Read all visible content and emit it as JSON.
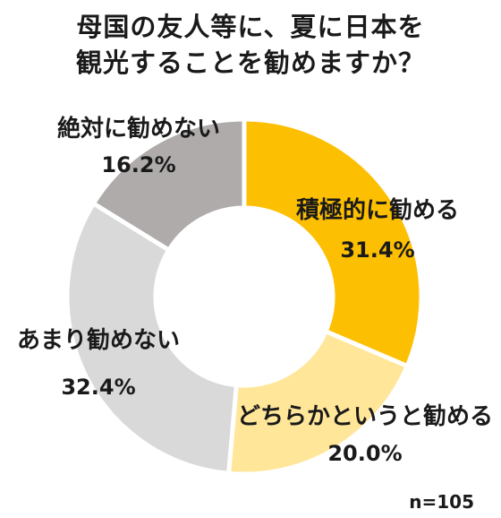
{
  "title_lines": [
    "母国の友人等に、夏に日本を",
    "観光することを勧めますか？"
  ],
  "note": "n=105",
  "chart_data": {
    "type": "pie",
    "variant": "donut",
    "title": "母国の友人等に、夏に日本を観光することを勧めますか？",
    "categories": [
      "積極的に勧める",
      "どちらかというと勧める",
      "あまり勧めない",
      "絶対に勧めない"
    ],
    "values": [
      31.4,
      20.0,
      32.4,
      16.2
    ],
    "value_labels": [
      "31.4%",
      "20.0%",
      "32.4%",
      "16.2%"
    ],
    "colors": [
      "#FDBF01",
      "#FFE699",
      "#D9D9D9",
      "#AFABAB"
    ],
    "unit": "%",
    "sample_size": "n=105",
    "start": "12 o'clock, clockwise"
  }
}
